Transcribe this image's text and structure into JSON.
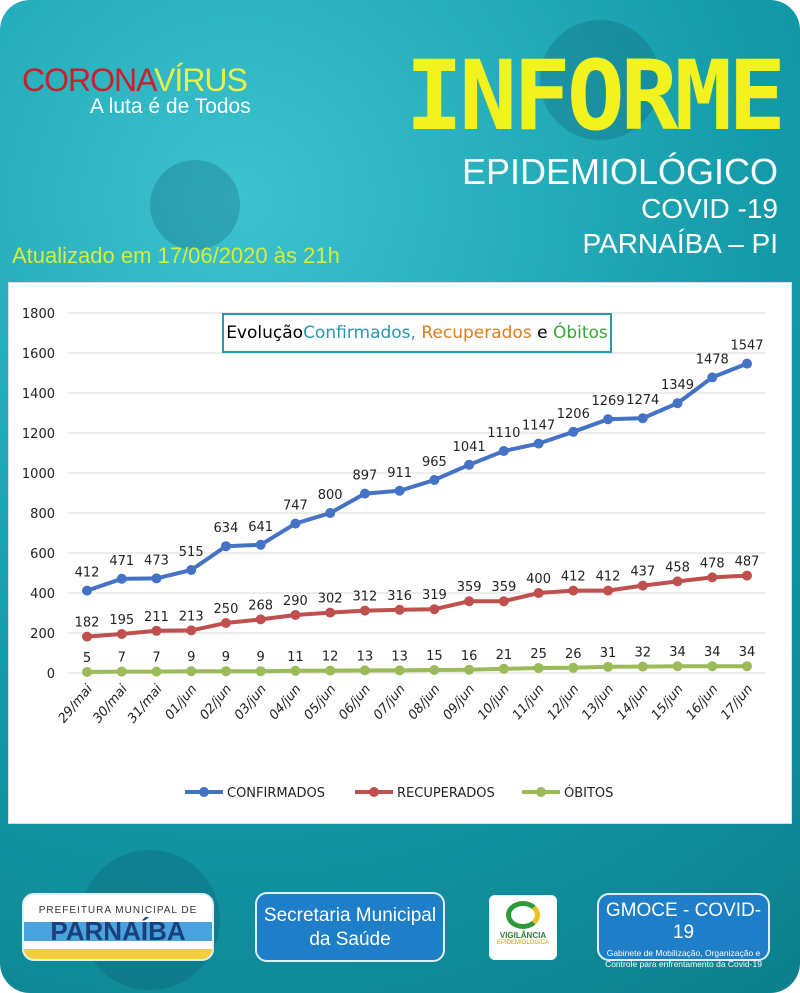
{
  "header": {
    "logo_corona": "CORONA",
    "logo_virus": "VÍRUS",
    "logo_tagline": "A luta é de Todos",
    "title": "INFORME",
    "subtitle1": "EPIDEMIOLÓGICO",
    "subtitle2": "COVID -19",
    "subtitle3": "PARNAÍBA – PI",
    "updated": "Atualizado em 17/06/2020 às 21h"
  },
  "chart_data": {
    "type": "line",
    "title_parts": [
      "Evolução ",
      "Confirmados, ",
      "Recuperados",
      " e ",
      "Óbitos"
    ],
    "categories": [
      "29/mai",
      "30/mai",
      "31/mai",
      "01/jun",
      "02/jun",
      "03/jun",
      "04/jun",
      "05/jun",
      "06/jun",
      "07/jun",
      "08/jun",
      "09/jun",
      "10/jun",
      "11/jun",
      "12/jun",
      "13/jun",
      "14/jun",
      "15/jun",
      "16/jun",
      "17/jun"
    ],
    "ylim": [
      0,
      1800
    ],
    "yticks": [
      0,
      200,
      400,
      600,
      800,
      1000,
      1200,
      1400,
      1600,
      1800
    ],
    "grid": true,
    "legend": "bottom",
    "series": [
      {
        "name": "CONFIRMADOS",
        "color": "#4472c4",
        "values": [
          412,
          471,
          473,
          515,
          634,
          641,
          747,
          800,
          897,
          911,
          965,
          1041,
          1110,
          1147,
          1206,
          1269,
          1274,
          1349,
          1478,
          1547
        ]
      },
      {
        "name": "RECUPERADOS",
        "color": "#c0504d",
        "values": [
          182,
          195,
          211,
          213,
          250,
          268,
          290,
          302,
          312,
          316,
          319,
          359,
          359,
          400,
          412,
          412,
          437,
          458,
          478,
          487
        ]
      },
      {
        "name": "ÓBITOS",
        "color": "#9bbb59",
        "values": [
          5,
          7,
          7,
          9,
          9,
          9,
          11,
          12,
          13,
          13,
          15,
          16,
          21,
          25,
          26,
          31,
          32,
          34,
          34,
          34
        ]
      }
    ]
  },
  "footer": {
    "prefeitura_top": "PREFEITURA MUNICIPAL DE",
    "prefeitura_name": "PARNAÍBA",
    "secretaria_line1": "Secretaria Municipal",
    "secretaria_line2": "da Saúde",
    "vigilancia_line1": "VIGILÂNCIA",
    "vigilancia_line2": "EPIDEMIOLÓGICA",
    "gmoce_title": "GMOCE - COVID-19",
    "gmoce_desc": "Gabinete de Mobilização, Organização e Controle para enfrentamento da Covid-19"
  }
}
